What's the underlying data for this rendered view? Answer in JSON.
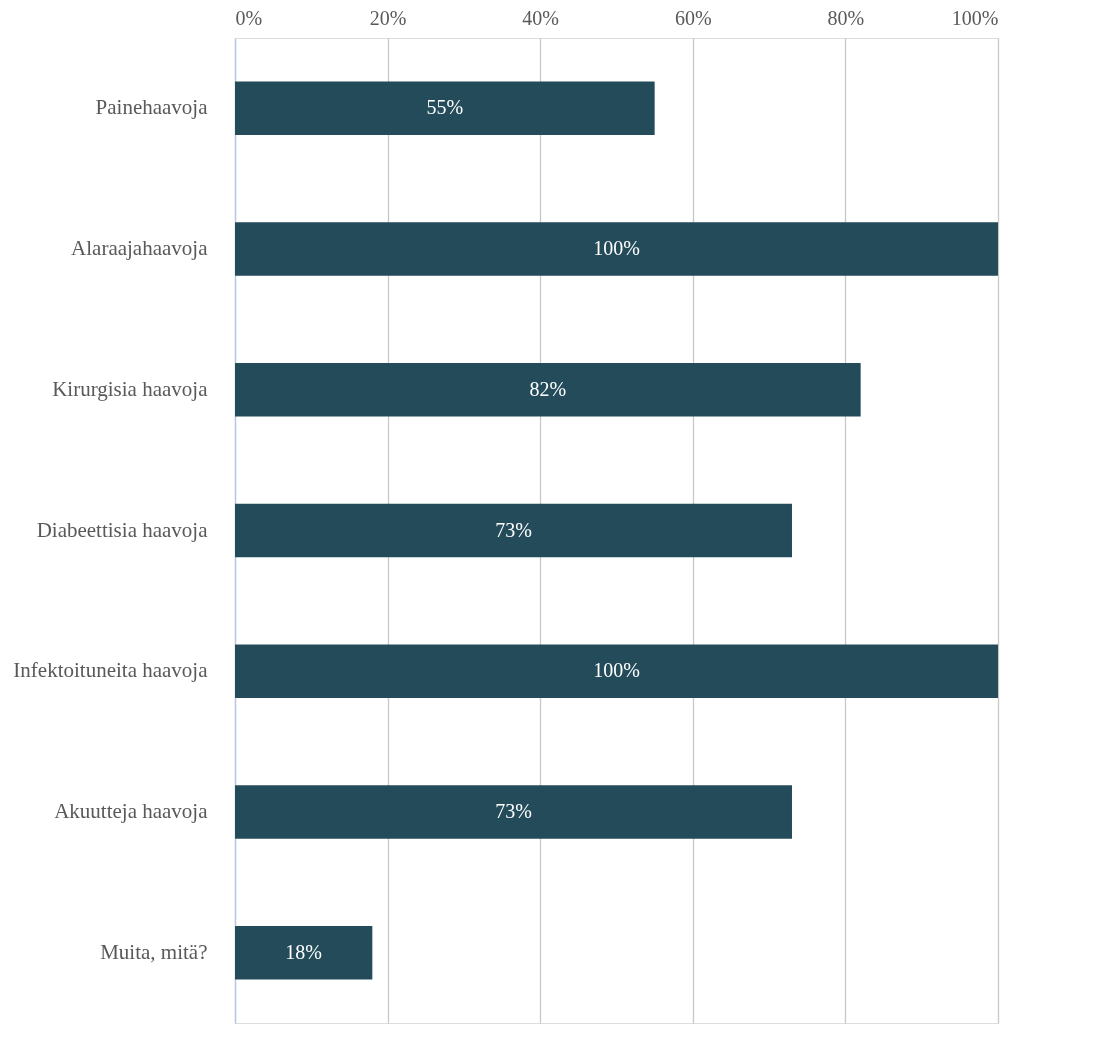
{
  "chart_data": {
    "type": "bar",
    "orientation": "horizontal",
    "categories": [
      "Painehaavoja",
      "Alaraajahaavoja",
      "Kirurgisia haavoja",
      "Diabeettisia haavoja",
      "Infektoituneita haavoja",
      "Akuutteja haavoja",
      "Muita, mitä?"
    ],
    "values": [
      55,
      100,
      82,
      73,
      100,
      73,
      18
    ],
    "value_labels": [
      "55%",
      "100%",
      "82%",
      "73%",
      "100%",
      "73%",
      "18%"
    ],
    "color": "#234b5a",
    "xlim": [
      0,
      100
    ],
    "xticks": [
      {
        "value": 0,
        "label": "0%"
      },
      {
        "value": 20,
        "label": "20%"
      },
      {
        "value": 40,
        "label": "40%"
      },
      {
        "value": 60,
        "label": "60%"
      },
      {
        "value": 80,
        "label": "80%"
      },
      {
        "value": 100,
        "label": "100%"
      }
    ],
    "grid": "x"
  }
}
